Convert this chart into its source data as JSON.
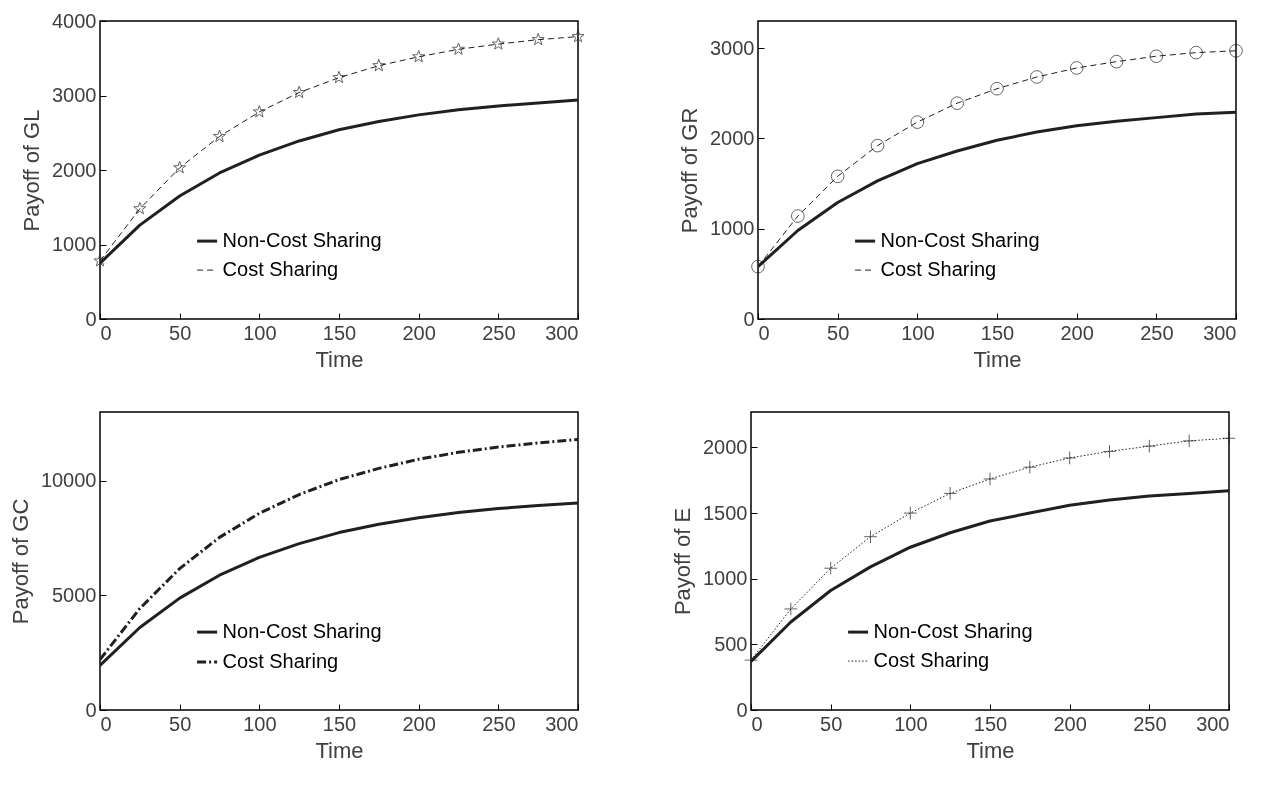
{
  "chart_data": [
    {
      "type": "line",
      "xlabel": "Time",
      "ylabel": "Payoff of GL",
      "x": [
        0,
        25,
        50,
        75,
        100,
        125,
        150,
        175,
        200,
        225,
        250,
        275,
        300
      ],
      "xlim": [
        0,
        300
      ],
      "xticks": [
        0,
        50,
        100,
        150,
        200,
        250,
        300
      ],
      "ylim": [
        0,
        4000
      ],
      "yticks": [
        0,
        1000,
        2000,
        3000,
        4000
      ],
      "legend": "bottom",
      "series": [
        {
          "name": "Non-Cost Sharing",
          "color": "#231f20",
          "line_style": "solid",
          "marker": "none",
          "values": [
            750,
            1260,
            1650,
            1960,
            2200,
            2390,
            2540,
            2650,
            2740,
            2810,
            2860,
            2900,
            2940
          ]
        },
        {
          "name": "Cost Sharing",
          "color": "#231f20",
          "line_style": "dashed",
          "marker": "star",
          "values": [
            780,
            1480,
            2030,
            2450,
            2780,
            3040,
            3240,
            3400,
            3520,
            3620,
            3690,
            3750,
            3790
          ]
        }
      ]
    },
    {
      "type": "line",
      "xlabel": "Time",
      "ylabel": "Payoff of GR",
      "x": [
        0,
        25,
        50,
        75,
        100,
        125,
        150,
        175,
        200,
        225,
        250,
        275,
        300
      ],
      "xlim": [
        0,
        300
      ],
      "xticks": [
        0,
        50,
        100,
        150,
        200,
        250,
        300
      ],
      "ylim": [
        0,
        3300
      ],
      "yticks": [
        0,
        1000,
        2000,
        3000
      ],
      "legend": "bottom",
      "series": [
        {
          "name": "Non-Cost Sharing",
          "color": "#231f20",
          "line_style": "solid",
          "marker": "none",
          "values": [
            580,
            980,
            1290,
            1530,
            1720,
            1860,
            1980,
            2070,
            2140,
            2190,
            2230,
            2270,
            2290
          ]
        },
        {
          "name": "Cost Sharing",
          "color": "#231f20",
          "line_style": "dashed",
          "marker": "circle",
          "values": [
            580,
            1140,
            1580,
            1920,
            2180,
            2390,
            2550,
            2680,
            2780,
            2850,
            2910,
            2950,
            2970
          ]
        }
      ]
    },
    {
      "type": "line",
      "xlabel": "Time",
      "ylabel": "Payoff of GC",
      "x": [
        0,
        25,
        50,
        75,
        100,
        125,
        150,
        175,
        200,
        225,
        250,
        275,
        300
      ],
      "xlim": [
        0,
        300
      ],
      "xticks": [
        0,
        50,
        100,
        150,
        200,
        250,
        300
      ],
      "ylim": [
        0,
        13000
      ],
      "yticks": [
        0,
        5000,
        10000
      ],
      "legend": "bottom",
      "series": [
        {
          "name": "Non-Cost Sharing",
          "color": "#231f20",
          "line_style": "solid",
          "marker": "none",
          "values": [
            1950,
            3600,
            4880,
            5880,
            6660,
            7260,
            7740,
            8100,
            8390,
            8620,
            8790,
            8920,
            9030
          ]
        },
        {
          "name": "Cost Sharing",
          "color": "#231f20",
          "line_style": "dashdot",
          "marker": "none",
          "values": [
            2200,
            4430,
            6170,
            7530,
            8580,
            9400,
            10050,
            10540,
            10940,
            11240,
            11470,
            11650,
            11800
          ]
        }
      ]
    },
    {
      "type": "line",
      "xlabel": "Time",
      "ylabel": "Payoff of E",
      "x": [
        0,
        25,
        50,
        75,
        100,
        125,
        150,
        175,
        200,
        225,
        250,
        275,
        300
      ],
      "xlim": [
        0,
        300
      ],
      "xticks": [
        0,
        50,
        100,
        150,
        200,
        250,
        300
      ],
      "ylim": [
        0,
        2270
      ],
      "yticks": [
        0,
        500,
        1000,
        1500,
        2000
      ],
      "legend": "bottom",
      "series": [
        {
          "name": "Non-Cost Sharing",
          "color": "#231f20",
          "line_style": "solid",
          "marker": "none",
          "values": [
            370,
            670,
            910,
            1090,
            1240,
            1350,
            1440,
            1500,
            1560,
            1600,
            1630,
            1650,
            1670
          ]
        },
        {
          "name": "Cost Sharing",
          "color": "#231f20",
          "line_style": "dotted",
          "marker": "cross",
          "values": [
            380,
            770,
            1080,
            1320,
            1500,
            1650,
            1760,
            1850,
            1920,
            1970,
            2010,
            2050,
            2070
          ]
        }
      ]
    }
  ]
}
